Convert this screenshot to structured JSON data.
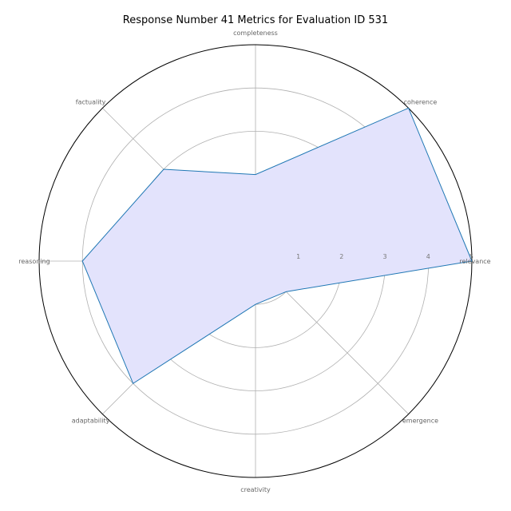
{
  "chart_data": {
    "type": "radar",
    "title": "Response Number 41 Metrics for Evaluation ID 531",
    "categories": [
      "relevance",
      "coherence",
      "completeness",
      "factuality",
      "reasoning",
      "adaptability",
      "creativity",
      "emergence"
    ],
    "series": [
      {
        "values": [
          5.0,
          5.0,
          2.0,
          3.0,
          4.0,
          4.0,
          1.0,
          1.0
        ]
      }
    ],
    "rlim": [
      0,
      5
    ],
    "rticks": [
      "1",
      "2",
      "3",
      "4",
      "5"
    ],
    "grid": true,
    "colors": {
      "line": "#1f77b4",
      "fill": "#e3e3fc"
    }
  }
}
